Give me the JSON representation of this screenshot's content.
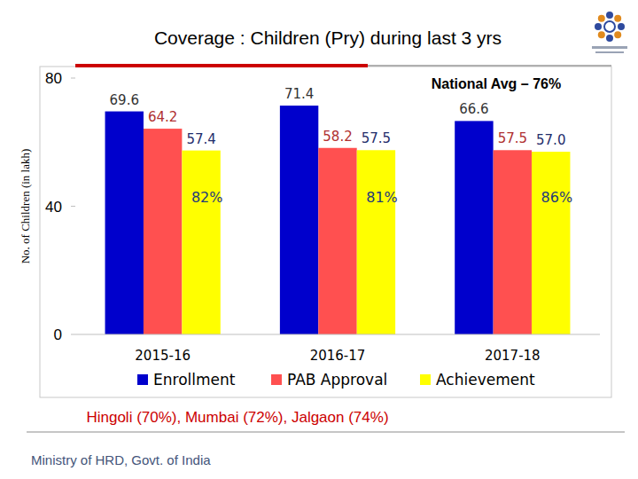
{
  "chart_data": {
    "type": "bar",
    "title": "Coverage : Children (Pry) during last 3 yrs",
    "subtitle": "National Avg – 76%",
    "y_label": "No. of Children (in lakh)",
    "categories": [
      "2015-16",
      "2016-17",
      "2017-18"
    ],
    "series": [
      {
        "name": "Enrollment",
        "color": "#0000cc",
        "values": [
          69.6,
          71.4,
          66.6
        ]
      },
      {
        "name": "PAB Approval",
        "color": "#ff5050",
        "values": [
          64.2,
          58.2,
          57.5
        ]
      },
      {
        "name": "Achievement",
        "color": "#ffff00",
        "values": [
          57.4,
          57.5,
          57.0
        ],
        "value_labels": [
          "57.4",
          "57.5",
          "57.0"
        ]
      }
    ],
    "annotations": [
      "82%",
      "81%",
      "86%"
    ],
    "ylim": [
      0,
      80
    ],
    "yticks": [
      0,
      40,
      80
    ],
    "grid": false,
    "legend": "bottom",
    "data_labels": true
  },
  "footer": {
    "note": "Hingoli (70%), Mumbai (72%), Jalgaon (74%)",
    "source": "Ministry of HRD, Govt. of India"
  }
}
